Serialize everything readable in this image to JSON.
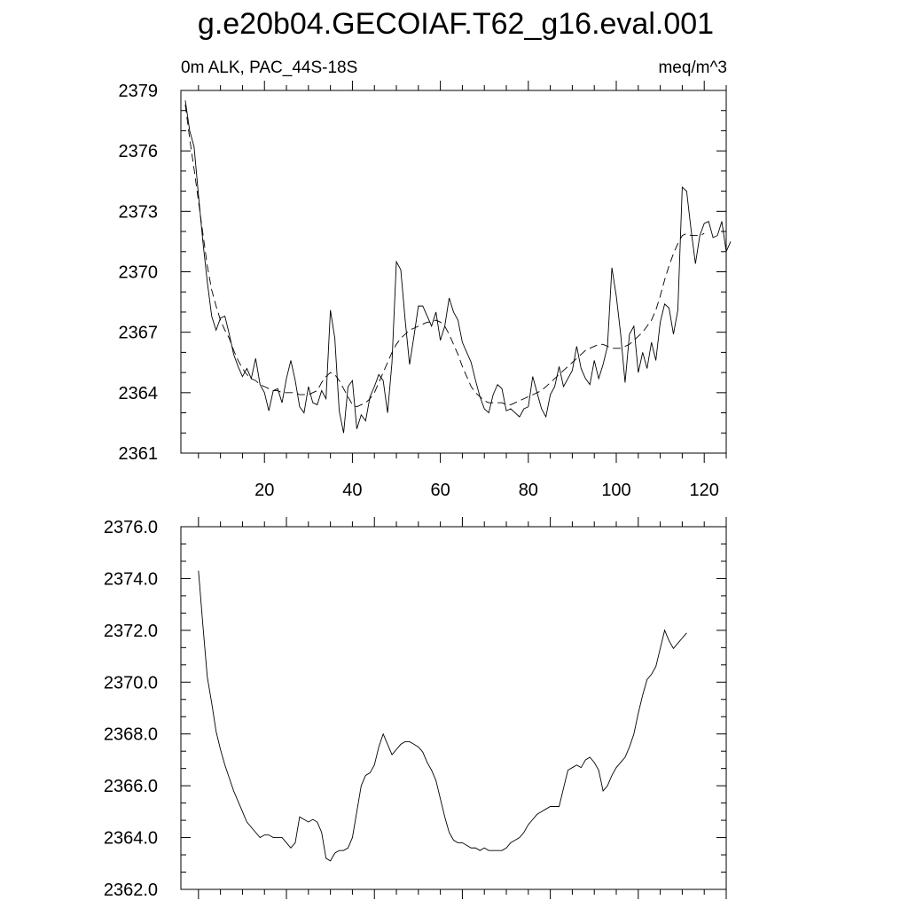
{
  "title": "g.e20b04.GECOIAF.T62_g16.eval.001",
  "chart_data": [
    {
      "type": "line",
      "left_label": "0m ALK, PAC_44S-18S",
      "right_label": "meq/m^3",
      "xlim": [
        1,
        125
      ],
      "ylim": [
        2361,
        2379
      ],
      "x_ticks": [
        20,
        40,
        60,
        80,
        100,
        120
      ],
      "y_ticks": [
        2361,
        2364,
        2367,
        2370,
        2373,
        2376,
        2379
      ],
      "y_tick_labels": [
        "2361",
        "2364",
        "2367",
        "2370",
        "2373",
        "2376",
        "2379"
      ],
      "series": [
        {
          "style": "solid",
          "x_start": 2,
          "values": [
            2378.5,
            2377.0,
            2376.2,
            2373.8,
            2371.5,
            2369.5,
            2367.8,
            2367.1,
            2367.7,
            2367.8,
            2366.9,
            2365.9,
            2365.3,
            2364.8,
            2365.2,
            2364.7,
            2365.7,
            2364.4,
            2364.0,
            2363.1,
            2364.1,
            2364.2,
            2363.5,
            2364.7,
            2365.6,
            2364.6,
            2363.3,
            2363.0,
            2364.3,
            2363.5,
            2363.4,
            2364.1,
            2363.7,
            2368.1,
            2366.7,
            2363.1,
            2362.0,
            2364.3,
            2364.6,
            2362.2,
            2362.9,
            2362.6,
            2363.8,
            2364.3,
            2364.9,
            2364.6,
            2363.0,
            2365.5,
            2370.5,
            2370.1,
            2367.6,
            2365.4,
            2366.8,
            2368.3,
            2368.3,
            2367.8,
            2367.3,
            2368.0,
            2366.6,
            2367.3,
            2368.7,
            2368.0,
            2367.6,
            2366.5,
            2366.0,
            2365.5,
            2364.6,
            2363.8,
            2363.2,
            2363.0,
            2363.9,
            2364.4,
            2364.2,
            2363.1,
            2363.2,
            2363.0,
            2362.8,
            2363.2,
            2363.3,
            2364.8,
            2364.0,
            2363.2,
            2362.8,
            2363.9,
            2364.3,
            2365.3,
            2364.3,
            2364.7,
            2365.1,
            2366.3,
            2365.2,
            2364.7,
            2364.4,
            2365.6,
            2364.7,
            2365.4,
            2366.3,
            2370.2,
            2368.8,
            2366.9,
            2364.5,
            2366.9,
            2367.3,
            2365.0,
            2366.0,
            2365.2,
            2366.5,
            2365.6,
            2367.5,
            2368.4,
            2368.2,
            2366.9,
            2368.1,
            2374.2,
            2374.0,
            2372.1,
            2370.4,
            2371.8,
            2372.4,
            2372.5,
            2371.7,
            2371.8,
            2372.5,
            2371.0,
            2371.5
          ]
        },
        {
          "style": "dashed",
          "x_start": 2,
          "values": [
            2378.3,
            2376.6,
            2375.1,
            2373.5,
            2371.9,
            2370.3,
            2369.1,
            2368.3,
            2367.6,
            2367.1,
            2366.7,
            2366.1,
            2365.6,
            2365.2,
            2364.9,
            2364.7,
            2364.6,
            2364.4,
            2364.3,
            2364.2,
            2364.1,
            2364.1,
            2364.0,
            2364.0,
            2364.0,
            2364.0,
            2363.9,
            2363.9,
            2363.9,
            2364.0,
            2364.1,
            2364.5,
            2364.8,
            2365.0,
            2364.9,
            2364.6,
            2364.2,
            2363.8,
            2363.4,
            2363.3,
            2363.4,
            2363.5,
            2363.7,
            2364.0,
            2364.5,
            2365.0,
            2365.5,
            2366.0,
            2366.4,
            2366.7,
            2366.9,
            2367.1,
            2367.2,
            2367.3,
            2367.4,
            2367.5,
            2367.5,
            2367.6,
            2367.5,
            2367.3,
            2366.9,
            2366.4,
            2365.9,
            2365.3,
            2364.8,
            2364.3,
            2364.0,
            2363.8,
            2363.6,
            2363.5,
            2363.5,
            2363.5,
            2363.5,
            2363.4,
            2363.4,
            2363.5,
            2363.6,
            2363.7,
            2363.8,
            2363.9,
            2364.0,
            2364.1,
            2364.3,
            2364.5,
            2364.7,
            2364.9,
            2365.1,
            2365.3,
            2365.5,
            2365.7,
            2365.9,
            2366.1,
            2366.2,
            2366.3,
            2366.4,
            2366.4,
            2366.3,
            2366.2,
            2366.2,
            2366.2,
            2366.3,
            2366.4,
            2366.6,
            2366.8,
            2367.0,
            2367.3,
            2367.6,
            2368.1,
            2368.8,
            2369.6,
            2370.3,
            2370.9,
            2371.4,
            2371.8,
            2371.9,
            2371.8,
            2371.8,
            2371.8,
            2371.9
          ]
        }
      ]
    },
    {
      "type": "line",
      "xlim": [
        1,
        125
      ],
      "ylim": [
        2362.0,
        2376.0
      ],
      "x_ticks": [
        5,
        25,
        45,
        65,
        85,
        105,
        125
      ],
      "y_ticks": [
        2362.0,
        2364.0,
        2366.0,
        2368.0,
        2370.0,
        2372.0,
        2374.0,
        2376.0
      ],
      "y_tick_labels": [
        "2362.0",
        "2364.0",
        "2366.0",
        "2368.0",
        "2370.0",
        "2372.0",
        "2374.0",
        "2376.0"
      ],
      "series": [
        {
          "style": "solid",
          "x_start": 5,
          "values": [
            2374.3,
            2372.2,
            2370.2,
            2369.2,
            2368.1,
            2367.4,
            2366.8,
            2366.3,
            2365.8,
            2365.4,
            2365.0,
            2364.6,
            2364.4,
            2364.2,
            2364.0,
            2364.1,
            2364.1,
            2364.0,
            2364.0,
            2364.0,
            2363.8,
            2363.6,
            2363.8,
            2364.8,
            2364.7,
            2364.6,
            2364.7,
            2364.6,
            2364.2,
            2363.2,
            2363.1,
            2363.4,
            2363.5,
            2363.5,
            2363.6,
            2364.0,
            2365.0,
            2366.0,
            2366.4,
            2366.5,
            2366.8,
            2367.5,
            2368.0,
            2367.6,
            2367.2,
            2367.4,
            2367.6,
            2367.7,
            2367.7,
            2367.6,
            2367.5,
            2367.3,
            2366.9,
            2366.6,
            2366.2,
            2365.5,
            2364.8,
            2364.2,
            2363.9,
            2363.8,
            2363.8,
            2363.7,
            2363.6,
            2363.6,
            2363.5,
            2363.6,
            2363.5,
            2363.5,
            2363.5,
            2363.5,
            2363.6,
            2363.8,
            2363.9,
            2364.0,
            2364.2,
            2364.5,
            2364.7,
            2364.9,
            2365.0,
            2365.1,
            2365.2,
            2365.2,
            2365.2,
            2365.9,
            2366.6,
            2366.7,
            2366.8,
            2366.7,
            2367.0,
            2367.1,
            2366.9,
            2366.6,
            2365.8,
            2366.0,
            2366.4,
            2366.7,
            2366.9,
            2367.1,
            2367.5,
            2368.0,
            2368.8,
            2369.5,
            2370.1,
            2370.3,
            2370.6,
            2371.3,
            2372.0,
            2371.6,
            2371.3,
            2371.5,
            2371.7,
            2371.9
          ]
        }
      ]
    }
  ]
}
